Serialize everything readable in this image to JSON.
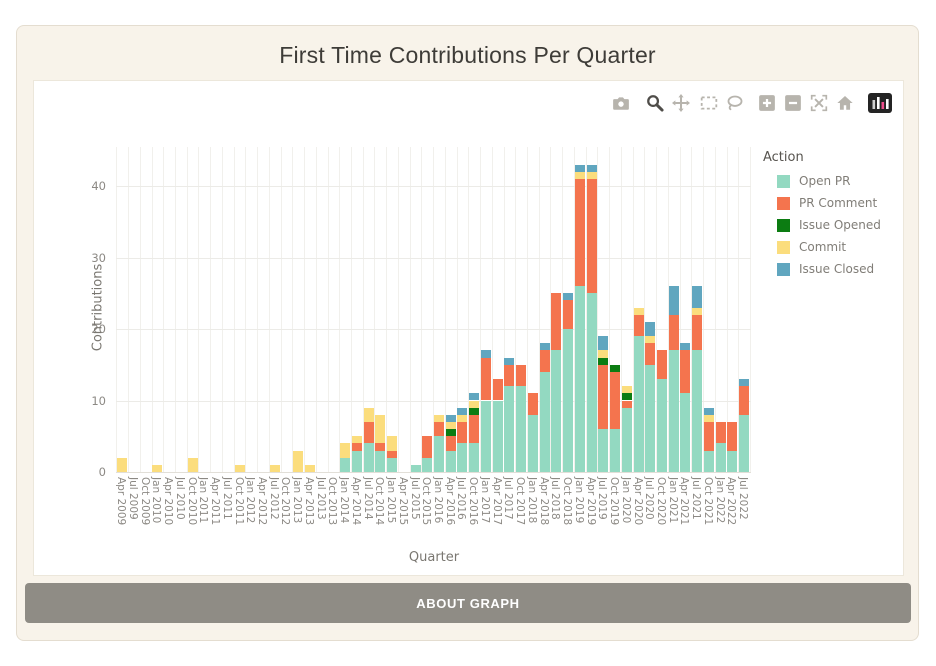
{
  "page": {
    "title": "First Time Contributions Per Quarter",
    "about_button_label": "ABOUT GRAPH"
  },
  "modebar": {
    "icons": [
      "camera-icon",
      "zoom-icon",
      "pan-icon",
      "box-select-icon",
      "lasso-select-icon",
      "zoom-in-icon",
      "zoom-out-icon",
      "autoscale-icon",
      "reset-axes-home-icon",
      "plotly-logo-icon"
    ],
    "active_icon": "zoom-icon",
    "icon_color": "#b7b4ad",
    "active_color": "#4f4d49"
  },
  "legend": {
    "title": "Action",
    "items": [
      {
        "label": "Open PR",
        "color": "#93d9c1"
      },
      {
        "label": "PR Comment",
        "color": "#f4744e"
      },
      {
        "label": "Issue Opened",
        "color": "#0c7c12"
      },
      {
        "label": "Commit",
        "color": "#fbdd7d"
      },
      {
        "label": "Issue Closed",
        "color": "#60a6bf"
      }
    ]
  },
  "yaxis": {
    "title": "Contributions",
    "ticks": [
      0,
      10,
      20,
      30,
      40
    ]
  },
  "xaxis": {
    "title": "Quarter"
  },
  "colors": {
    "card_background": "#f8f3ea",
    "card_border": "#e4ddd0",
    "panel_background": "#ffffff",
    "button_background": "#8f8c85",
    "title_text": "#3e3c38",
    "tick_text": "#8c8984"
  },
  "chart_data": {
    "type": "bar",
    "stacked": true,
    "title": "First Time Contributions Per Quarter",
    "xlabel": "Quarter",
    "ylabel": "Contributions",
    "ylim": [
      0,
      45.5
    ],
    "grid": true,
    "legend_position": "right",
    "legend_title": "Action",
    "categories": [
      "Apr 2009",
      "Jul 2009",
      "Oct 2009",
      "Jan 2010",
      "Apr 2010",
      "Jul 2010",
      "Oct 2010",
      "Jan 2011",
      "Apr 2011",
      "Jul 2011",
      "Oct 2011",
      "Jan 2012",
      "Apr 2012",
      "Jul 2012",
      "Oct 2012",
      "Jan 2013",
      "Apr 2013",
      "Jul 2013",
      "Oct 2013",
      "Jan 2014",
      "Apr 2014",
      "Jul 2014",
      "Oct 2014",
      "Jan 2015",
      "Apr 2015",
      "Jul 2015",
      "Oct 2015",
      "Jan 2016",
      "Apr 2016",
      "Jul 2016",
      "Oct 2016",
      "Jan 2017",
      "Apr 2017",
      "Jul 2017",
      "Oct 2017",
      "Jan 2018",
      "Apr 2018",
      "Jul 2018",
      "Oct 2018",
      "Jan 2019",
      "Apr 2019",
      "Jul 2019",
      "Oct 2019",
      "Jan 2020",
      "Apr 2020",
      "Jul 2020",
      "Oct 2020",
      "Jan 2021",
      "Apr 2021",
      "Jul 2021",
      "Oct 2021",
      "Jan 2022",
      "Apr 2022",
      "Jul 2022"
    ],
    "series": [
      {
        "name": "Open PR",
        "color": "#93d9c1",
        "values": [
          0,
          0,
          0,
          0,
          0,
          0,
          0,
          0,
          0,
          0,
          0,
          0,
          0,
          0,
          0,
          0,
          0,
          0,
          0,
          2,
          3,
          4,
          3,
          2,
          0,
          1,
          2,
          5,
          3,
          4,
          4,
          10,
          10,
          12,
          12,
          8,
          14,
          17,
          20,
          26,
          25,
          6,
          6,
          9,
          19,
          15,
          13,
          17,
          11,
          17,
          3,
          4,
          3,
          8
        ]
      },
      {
        "name": "PR Comment",
        "color": "#f4744e",
        "values": [
          0,
          0,
          0,
          0,
          0,
          0,
          0,
          0,
          0,
          0,
          0,
          0,
          0,
          0,
          0,
          0,
          0,
          0,
          0,
          0,
          1,
          3,
          1,
          1,
          0,
          0,
          3,
          2,
          2,
          3,
          4,
          6,
          3,
          3,
          3,
          3,
          3,
          8,
          4,
          15,
          16,
          9,
          8,
          1,
          3,
          3,
          4,
          5,
          6,
          5,
          4,
          3,
          4,
          4
        ]
      },
      {
        "name": "Issue Opened",
        "color": "#0c7c12",
        "values": [
          0,
          0,
          0,
          0,
          0,
          0,
          0,
          0,
          0,
          0,
          0,
          0,
          0,
          0,
          0,
          0,
          0,
          0,
          0,
          0,
          0,
          0,
          0,
          0,
          0,
          0,
          0,
          0,
          1,
          0,
          1,
          0,
          0,
          0,
          0,
          0,
          0,
          0,
          0,
          0,
          0,
          1,
          1,
          1,
          0,
          0,
          0,
          0,
          0,
          0,
          0,
          0,
          0,
          0
        ]
      },
      {
        "name": "Commit",
        "color": "#fbdd7d",
        "values": [
          2,
          0,
          0,
          1,
          0,
          0,
          2,
          0,
          0,
          0,
          1,
          0,
          0,
          1,
          0,
          3,
          1,
          0,
          0,
          2,
          1,
          2,
          4,
          2,
          0,
          0,
          0,
          1,
          1,
          1,
          1,
          0,
          0,
          0,
          0,
          0,
          0,
          0,
          0,
          1,
          1,
          1,
          0,
          1,
          1,
          1,
          0,
          0,
          0,
          1,
          1,
          0,
          0,
          0
        ]
      },
      {
        "name": "Issue Closed",
        "color": "#60a6bf",
        "values": [
          0,
          0,
          0,
          0,
          0,
          0,
          0,
          0,
          0,
          0,
          0,
          0,
          0,
          0,
          0,
          0,
          0,
          0,
          0,
          0,
          0,
          0,
          0,
          0,
          0,
          0,
          0,
          0,
          1,
          1,
          1,
          1,
          0,
          1,
          0,
          0,
          1,
          0,
          1,
          1,
          1,
          2,
          0,
          0,
          0,
          2,
          0,
          4,
          1,
          3,
          1,
          0,
          0,
          1
        ]
      }
    ]
  }
}
